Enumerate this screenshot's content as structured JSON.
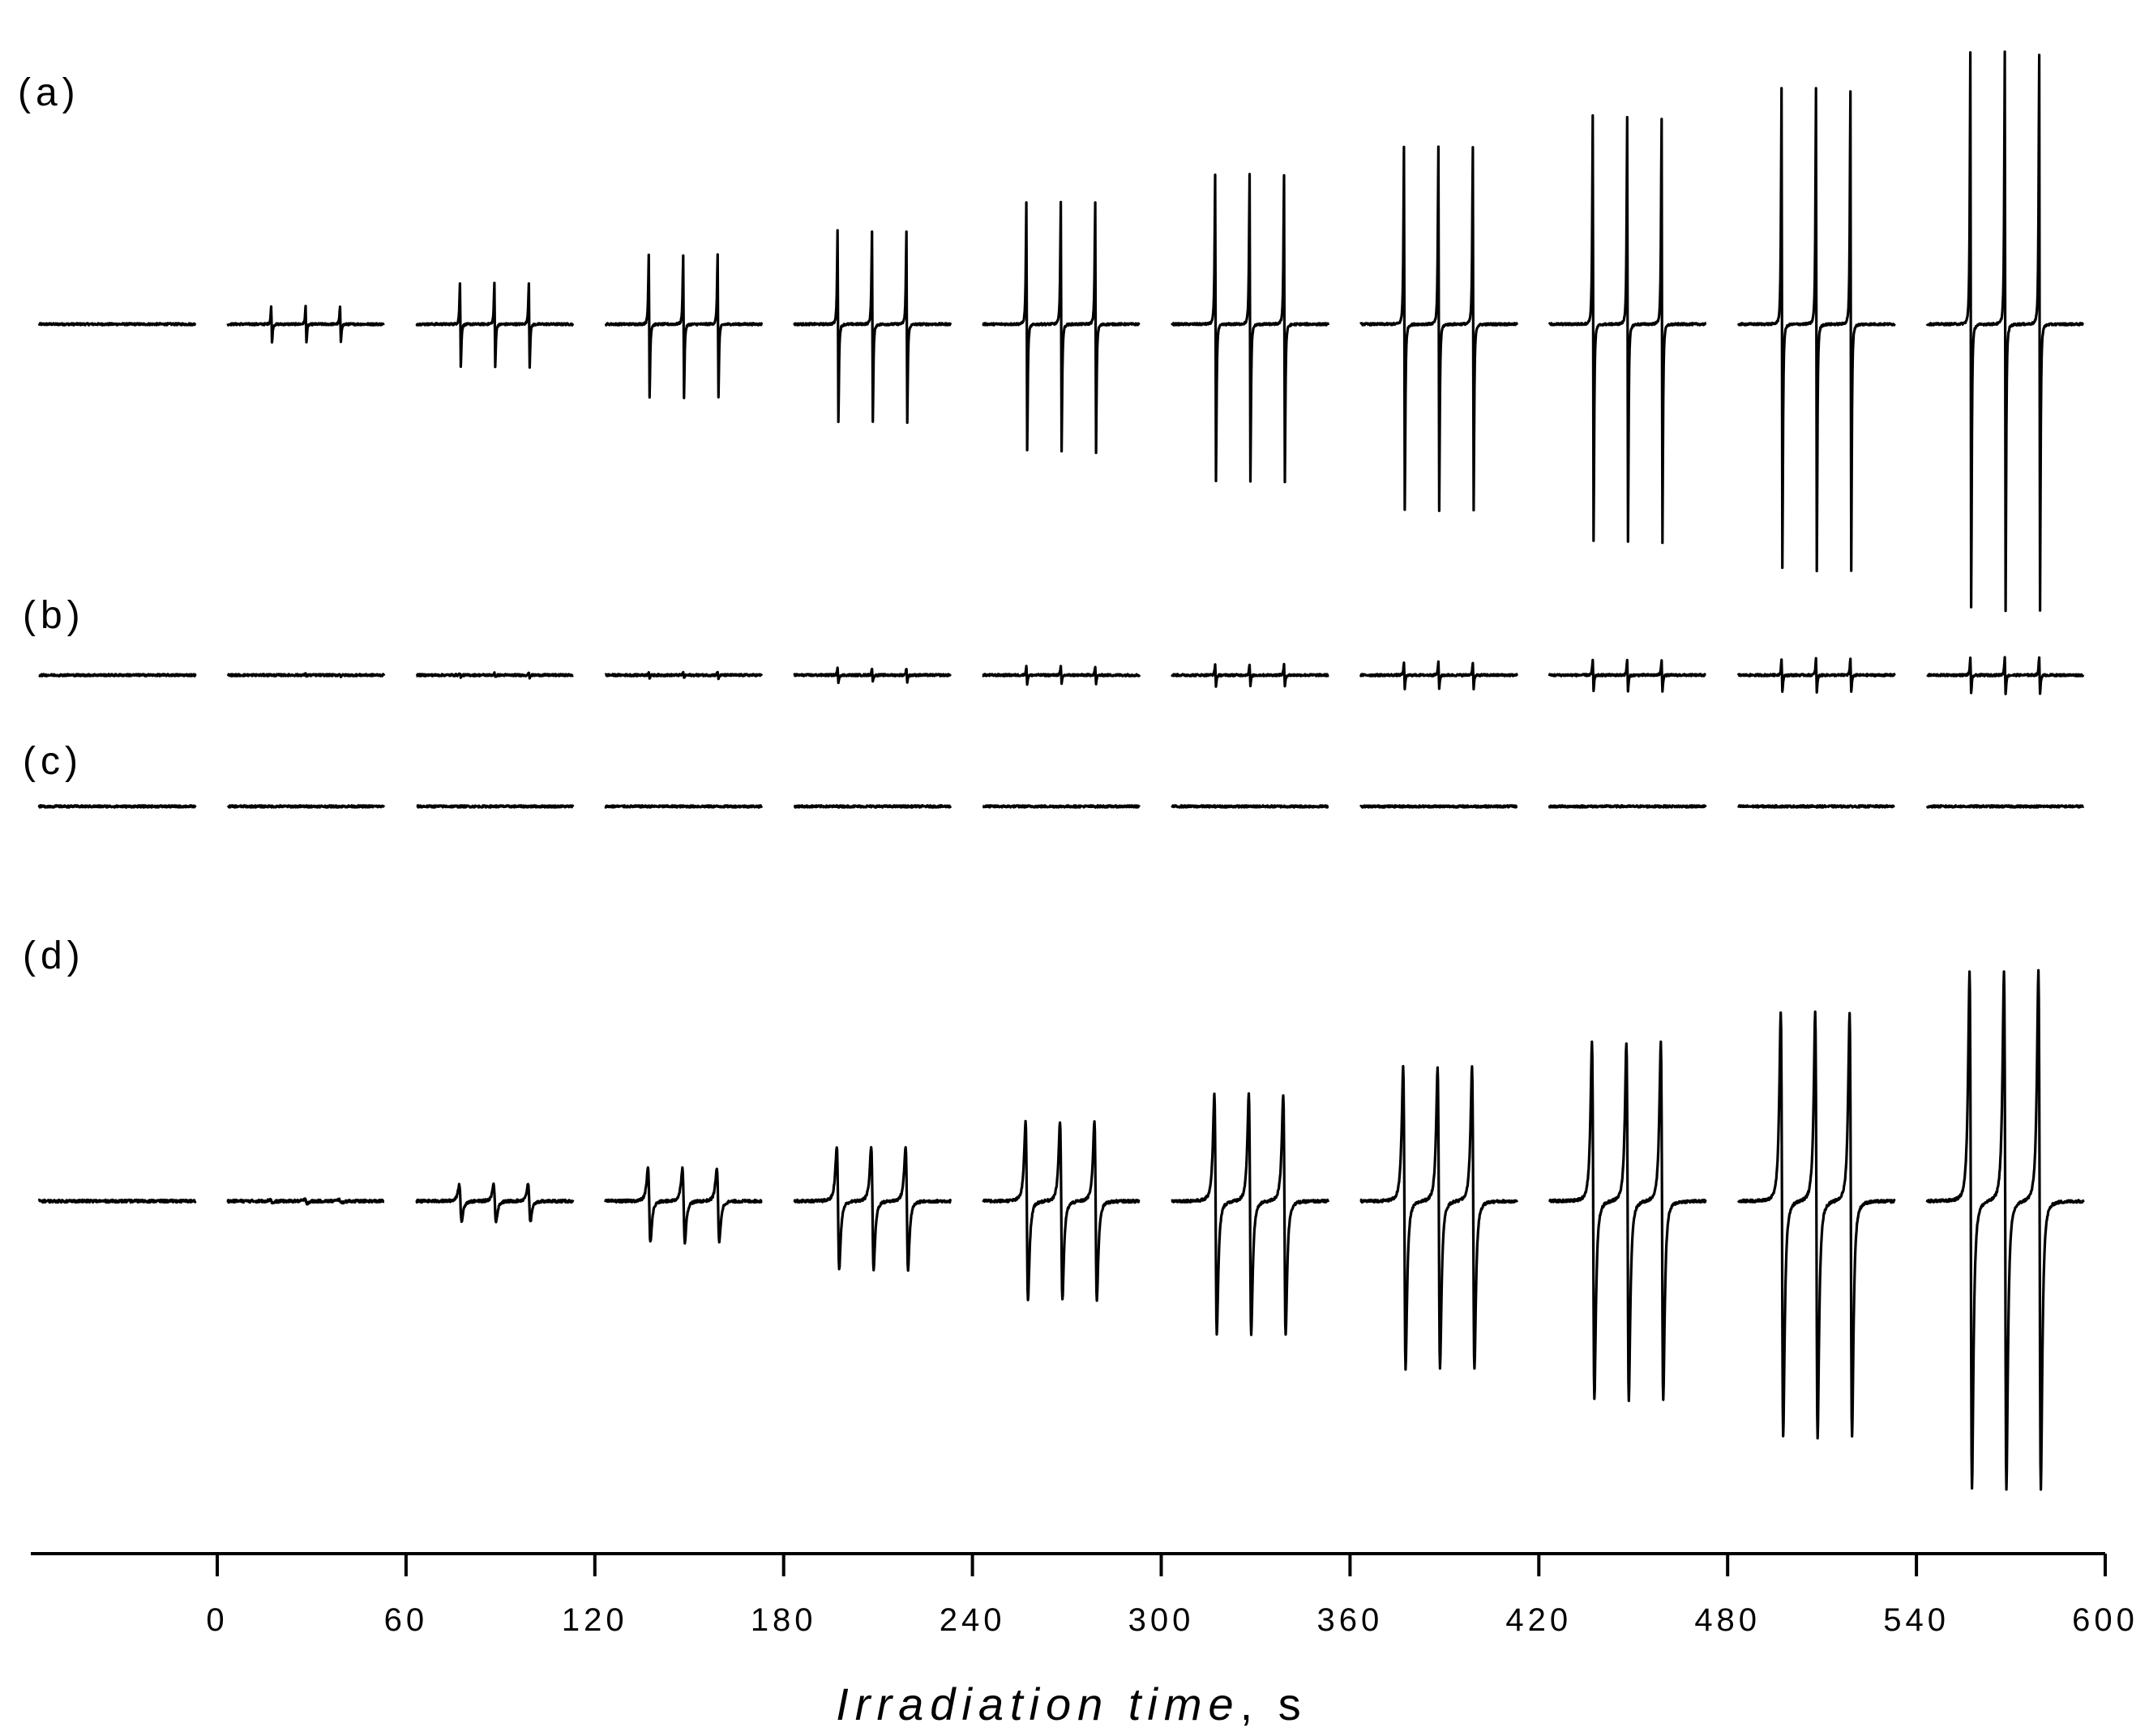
{
  "chart_data": {
    "type": "line",
    "description_note": "",
    "xlabel": {
      "main": "Irradiation time",
      "unit": ", s"
    },
    "x_ticks": [
      0,
      60,
      120,
      180,
      240,
      300,
      360,
      420,
      480,
      540,
      600
    ],
    "xlim": [
      -60,
      600
    ],
    "times": [
      -60,
      0,
      60,
      120,
      180,
      240,
      300,
      360,
      420,
      480,
      540
    ],
    "panels": [
      {
        "label": "(a)",
        "amplitudes": [
          0,
          0.32,
          0.75,
          1.27,
          1.7,
          2.23,
          2.74,
          3.25,
          3.8,
          4.3,
          4.98
        ],
        "shape": "sharp"
      },
      {
        "label": "(b)",
        "amplitudes": [
          0,
          0.02,
          0.04,
          0.06,
          0.12,
          0.15,
          0.19,
          0.23,
          0.28,
          0.3,
          0.33
        ],
        "shape": "sharp"
      },
      {
        "label": "(c)",
        "amplitudes": [
          0,
          0,
          0,
          0,
          0,
          0,
          0,
          0,
          0,
          0,
          0
        ],
        "shape": "sharp"
      },
      {
        "label": "(d)",
        "amplitudes": [
          0,
          0.03,
          0.3,
          0.6,
          1.0,
          1.45,
          1.95,
          2.45,
          2.9,
          3.45,
          4.2
        ],
        "shape": "broad"
      }
    ]
  }
}
